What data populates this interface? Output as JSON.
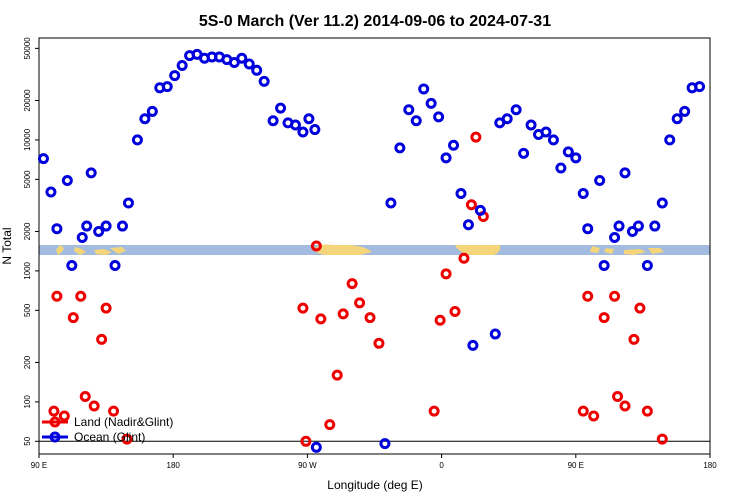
{
  "chart_data": {
    "type": "scatter",
    "title": "5S-0 March (Ver 11.2)   2014-09-06 to 2024-07-31",
    "xlabel": "Longitude (deg E)",
    "ylabel": "N Total",
    "y_scale": "log",
    "ylim": [
      40,
      60000
    ],
    "xlim": [
      90,
      540
    ],
    "x_ticks": [
      {
        "value": 90,
        "label": "90 E"
      },
      {
        "value": 180,
        "label": "180"
      },
      {
        "value": 270,
        "label": "90 W"
      },
      {
        "value": 360,
        "label": "0"
      },
      {
        "value": 450,
        "label": "90 E"
      },
      {
        "value": 540,
        "label": "180"
      }
    ],
    "y_ticks": [
      {
        "value": 50,
        "label": "50"
      },
      {
        "value": 100,
        "label": "100"
      },
      {
        "value": 200,
        "label": "200"
      },
      {
        "value": 500,
        "label": "500"
      },
      {
        "value": 1000,
        "label": "1000"
      },
      {
        "value": 2000,
        "label": "2000"
      },
      {
        "value": 5000,
        "label": "5000"
      },
      {
        "value": 10000,
        "label": "10000"
      },
      {
        "value": 20000,
        "label": "20000"
      },
      {
        "value": 50000,
        "label": "50000"
      }
    ],
    "legend": {
      "position": "bottom-left",
      "entries": [
        {
          "label": "Land (Nadir&Glint)",
          "color": "#ee0000"
        },
        {
          "label": "Ocean (Glint)",
          "color": "#0000dd"
        }
      ]
    },
    "reference_line": {
      "value": 50
    },
    "series": [
      {
        "name": "Land (Nadir&Glint)",
        "color": "#ee0000",
        "points": [
          [
            100,
            85
          ],
          [
            102,
            640
          ],
          [
            107,
            78
          ],
          [
            113,
            440
          ],
          [
            118,
            640
          ],
          [
            121,
            110
          ],
          [
            127,
            93
          ],
          [
            132,
            300
          ],
          [
            135,
            520
          ],
          [
            140,
            85
          ],
          [
            149,
            52
          ],
          [
            267,
            520
          ],
          [
            269,
            50
          ],
          [
            276,
            1550
          ],
          [
            279,
            430
          ],
          [
            285,
            67
          ],
          [
            290,
            160
          ],
          [
            294,
            470
          ],
          [
            300,
            800
          ],
          [
            305,
            570
          ],
          [
            312,
            440
          ],
          [
            318,
            280
          ],
          [
            355,
            85
          ],
          [
            359,
            420
          ],
          [
            363,
            950
          ],
          [
            369,
            490
          ],
          [
            375,
            1250
          ],
          [
            380,
            3200
          ],
          [
            383,
            10500
          ],
          [
            388,
            2600
          ],
          [
            455,
            85
          ],
          [
            458,
            640
          ],
          [
            462,
            78
          ],
          [
            469,
            440
          ],
          [
            476,
            640
          ],
          [
            478,
            110
          ],
          [
            483,
            93
          ],
          [
            489,
            300
          ],
          [
            493,
            520
          ],
          [
            498,
            85
          ],
          [
            508,
            52
          ]
        ]
      },
      {
        "name": "Ocean (Glint)",
        "color": "#0000dd",
        "points": [
          [
            93,
            7200
          ],
          [
            98,
            4000
          ],
          [
            102,
            2100
          ],
          [
            109,
            4900
          ],
          [
            112,
            1100
          ],
          [
            119,
            1800
          ],
          [
            122,
            2200
          ],
          [
            125,
            5600
          ],
          [
            130,
            2000
          ],
          [
            135,
            2200
          ],
          [
            141,
            1100
          ],
          [
            146,
            2200
          ],
          [
            150,
            3300
          ],
          [
            156,
            10000
          ],
          [
            161,
            14500
          ],
          [
            166,
            16500
          ],
          [
            171,
            25000
          ],
          [
            176,
            25500
          ],
          [
            181,
            31000
          ],
          [
            186,
            37000
          ],
          [
            191,
            44000
          ],
          [
            196,
            45000
          ],
          [
            201,
            42000
          ],
          [
            206,
            43000
          ],
          [
            211,
            43000
          ],
          [
            216,
            41000
          ],
          [
            221,
            39000
          ],
          [
            226,
            42000
          ],
          [
            231,
            38000
          ],
          [
            236,
            34000
          ],
          [
            241,
            28000
          ],
          [
            247,
            14000
          ],
          [
            252,
            17500
          ],
          [
            257,
            13500
          ],
          [
            262,
            13000
          ],
          [
            267,
            11500
          ],
          [
            271,
            14500
          ],
          [
            275,
            12000
          ],
          [
            276,
            45
          ],
          [
            322,
            48
          ],
          [
            326,
            3300
          ],
          [
            332,
            8700
          ],
          [
            338,
            17000
          ],
          [
            343,
            14000
          ],
          [
            348,
            24500
          ],
          [
            353,
            19000
          ],
          [
            358,
            15000
          ],
          [
            363,
            7300
          ],
          [
            368,
            9100
          ],
          [
            373,
            3900
          ],
          [
            378,
            2250
          ],
          [
            381,
            270
          ],
          [
            386,
            2900
          ],
          [
            396,
            330
          ],
          [
            399,
            13500
          ],
          [
            404,
            14500
          ],
          [
            410,
            17000
          ],
          [
            415,
            7900
          ],
          [
            420,
            13000
          ],
          [
            425,
            11000
          ],
          [
            430,
            11500
          ],
          [
            435,
            10000
          ],
          [
            440,
            6100
          ],
          [
            445,
            8100
          ],
          [
            450,
            7300
          ],
          [
            455,
            3900
          ],
          [
            458,
            2100
          ],
          [
            466,
            4900
          ],
          [
            469,
            1100
          ],
          [
            476,
            1800
          ],
          [
            479,
            2200
          ],
          [
            483,
            5600
          ],
          [
            488,
            2000
          ],
          [
            492,
            2200
          ],
          [
            498,
            1100
          ],
          [
            503,
            2200
          ],
          [
            508,
            3300
          ],
          [
            513,
            10000
          ],
          [
            518,
            14500
          ],
          [
            523,
            16500
          ],
          [
            528,
            25000
          ],
          [
            533,
            25500
          ]
        ]
      }
    ]
  }
}
